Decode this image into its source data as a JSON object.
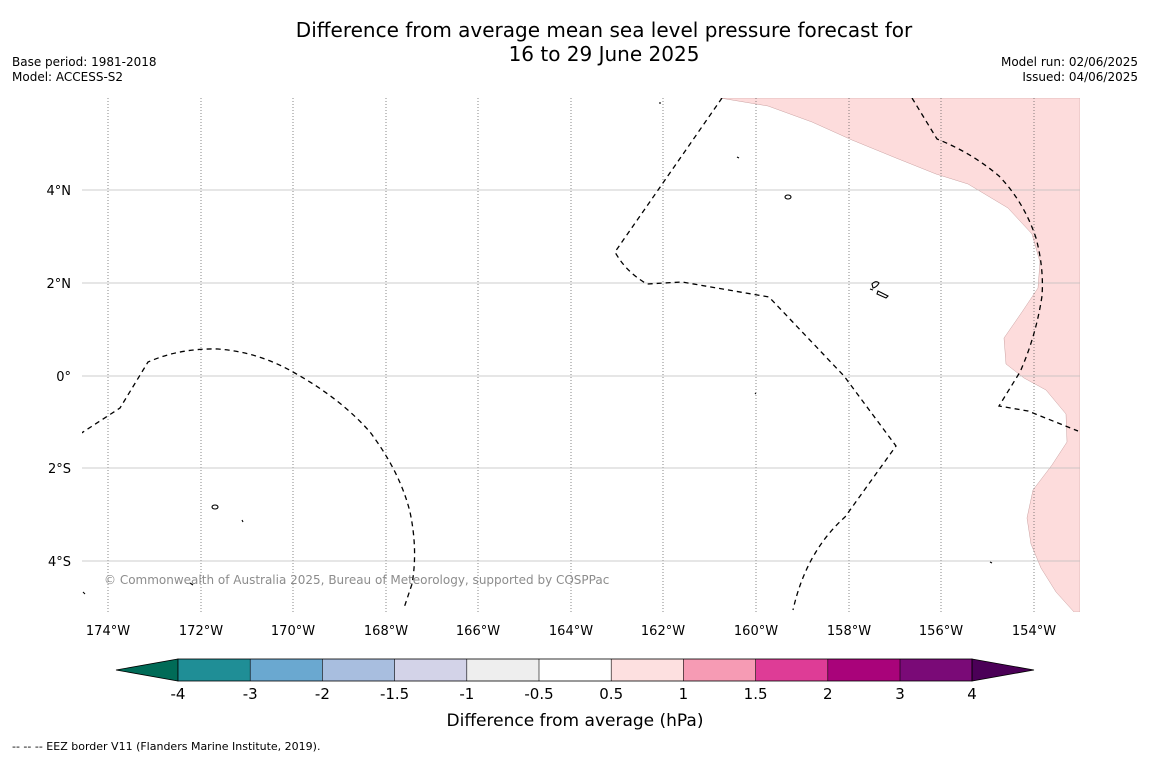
{
  "title": {
    "line1": "Difference from average mean sea level pressure forecast for",
    "line2": "16 to 29 June 2025"
  },
  "meta_left": {
    "base_period": "Base period: 1981-2018",
    "model": "Model: ACCESS-S2"
  },
  "meta_right": {
    "model_run": "Model run: 02/06/2025",
    "issued": "Issued: 04/06/2025"
  },
  "map": {
    "lon_labels": [
      "174°W",
      "172°W",
      "170°W",
      "168°W",
      "166°W",
      "164°W",
      "162°W",
      "160°W",
      "158°W",
      "156°W",
      "154°W"
    ],
    "lat_labels": [
      "4°N",
      "2°N",
      "0°",
      "2°S",
      "4°S"
    ],
    "copyright": "© Commonwealth of Australia 2025, Bureau of Meteorology, supported by COSPPac",
    "anomaly_fill_color": "#fddcdc"
  },
  "colorbar": {
    "tick_labels": [
      "-4",
      "-3",
      "-2",
      "-1.5",
      "-1",
      "-0.5",
      "0.5",
      "1",
      "1.5",
      "2",
      "3",
      "4"
    ],
    "colors": [
      "#006b57",
      "#1f8e96",
      "#6aa8d0",
      "#a8bedf",
      "#d3d3e8",
      "#eeeeee",
      "#ffffff",
      "#fde0e0",
      "#f69bb4",
      "#de3c96",
      "#a9037a",
      "#7a0a77",
      "#4b0057"
    ],
    "label": "Difference from average (hPa)"
  },
  "footnote": "--  --  -- EEZ border V11 (Flanders Marine Institute, 2019)."
}
